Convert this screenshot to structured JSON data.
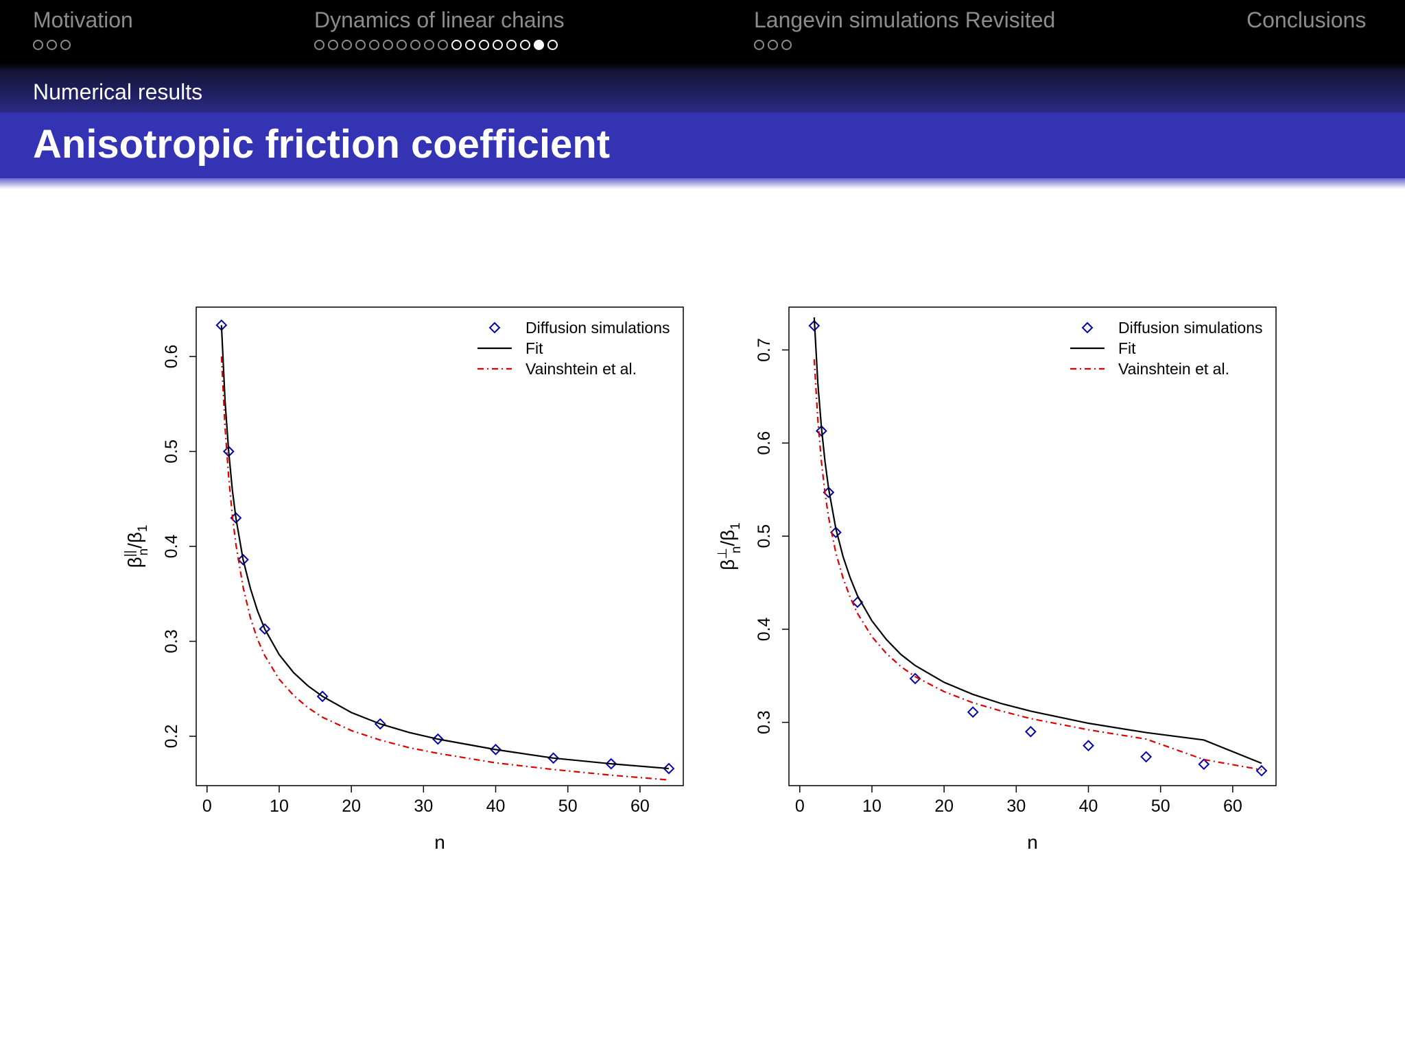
{
  "nav": {
    "sections": [
      {
        "title": "Motivation",
        "active": false,
        "dots": [
          "o",
          "o",
          "o"
        ]
      },
      {
        "title": "Dynamics of linear chains",
        "active": true,
        "dots": [
          "o",
          "o",
          "o",
          "o",
          "o",
          "o",
          "o",
          "o",
          "o",
          "o",
          "lit",
          "lit",
          "lit",
          "lit",
          "lit",
          "lit",
          "current",
          "lit"
        ]
      },
      {
        "title": "Langevin simulations Revisited",
        "active": false,
        "dots": [
          "o",
          "o",
          "o"
        ]
      },
      {
        "title": "Conclusions",
        "active": false,
        "dots": []
      }
    ]
  },
  "subsection": "Numerical results",
  "frame_title": "Anisotropic friction coefficient",
  "colors": {
    "points": "#0000b0",
    "fit": "#000000",
    "vainshtein": "#dd0000"
  },
  "chart_data": [
    {
      "type": "line",
      "xlabel": "n",
      "ylabel_base": "β",
      "ylabel_sup": "||",
      "ylabel_sub": "n",
      "ylabel_den": "/β",
      "ylabel_den_sub": "1",
      "xlim": [
        -1.5,
        66
      ],
      "ylim": [
        0.148,
        0.652
      ],
      "xticks": [
        0,
        10,
        20,
        30,
        40,
        50,
        60
      ],
      "yticks": [
        0.2,
        0.3,
        0.4,
        0.5,
        0.6
      ],
      "legend_position": "top-right",
      "series": [
        {
          "name": "Diffusion simulations",
          "style": "points",
          "x": [
            2,
            3,
            4,
            5,
            8,
            16,
            24,
            32,
            40,
            48,
            56,
            64
          ],
          "y": [
            0.633,
            0.5,
            0.43,
            0.386,
            0.313,
            0.242,
            0.213,
            0.197,
            0.186,
            0.177,
            0.171,
            0.166
          ]
        },
        {
          "name": "Fit",
          "style": "solid",
          "x": [
            2,
            2.5,
            3,
            3.5,
            4,
            5,
            6,
            7,
            8,
            10,
            12,
            14,
            16,
            20,
            24,
            28,
            32,
            40,
            48,
            56,
            64
          ],
          "y": [
            0.633,
            0.553,
            0.5,
            0.46,
            0.43,
            0.386,
            0.356,
            0.332,
            0.313,
            0.286,
            0.267,
            0.253,
            0.242,
            0.225,
            0.213,
            0.204,
            0.197,
            0.186,
            0.177,
            0.171,
            0.166
          ]
        },
        {
          "name": "Vainshtein et al.",
          "style": "dashdot",
          "x": [
            2,
            2.5,
            3,
            3.5,
            4,
            5,
            6,
            7,
            8,
            10,
            12,
            14,
            16,
            20,
            24,
            28,
            32,
            40,
            48,
            56,
            64
          ],
          "y": [
            0.6,
            0.525,
            0.473,
            0.433,
            0.402,
            0.357,
            0.325,
            0.302,
            0.285,
            0.26,
            0.243,
            0.23,
            0.22,
            0.206,
            0.196,
            0.188,
            0.182,
            0.172,
            0.165,
            0.159,
            0.154
          ]
        }
      ]
    },
    {
      "type": "line",
      "xlabel": "n",
      "ylabel_base": "β",
      "ylabel_sup": "⊥",
      "ylabel_sub": "n",
      "ylabel_den": "/β",
      "ylabel_den_sub": "1",
      "xlim": [
        -1.5,
        66
      ],
      "ylim": [
        0.232,
        0.746
      ],
      "xticks": [
        0,
        10,
        20,
        30,
        40,
        50,
        60
      ],
      "yticks": [
        0.3,
        0.4,
        0.5,
        0.6,
        0.7
      ],
      "legend_position": "top-right",
      "series": [
        {
          "name": "Diffusion simulations",
          "style": "points",
          "x": [
            2,
            3,
            4,
            5,
            8,
            16,
            24,
            32,
            40,
            48,
            56,
            64
          ],
          "y": [
            0.726,
            0.613,
            0.547,
            0.504,
            0.429,
            0.347,
            0.311,
            0.29,
            0.275,
            0.263,
            0.255,
            0.248
          ]
        },
        {
          "name": "Fit",
          "style": "solid",
          "x": [
            2,
            2.5,
            3,
            3.5,
            4,
            5,
            6,
            7,
            8,
            10,
            12,
            14,
            16,
            20,
            24,
            28,
            32,
            40,
            48,
            56,
            64
          ],
          "y": [
            0.735,
            0.665,
            0.617,
            0.58,
            0.551,
            0.508,
            0.478,
            0.455,
            0.436,
            0.409,
            0.389,
            0.373,
            0.361,
            0.343,
            0.33,
            0.32,
            0.312,
            0.299,
            0.289,
            0.281,
            0.256
          ]
        },
        {
          "name": "Vainshtein et al.",
          "style": "dashdot",
          "x": [
            2,
            2.5,
            3,
            3.5,
            4,
            5,
            6,
            7,
            8,
            10,
            12,
            14,
            16,
            20,
            24,
            28,
            32,
            40,
            48,
            56,
            64
          ],
          "y": [
            0.69,
            0.625,
            0.58,
            0.546,
            0.52,
            0.482,
            0.455,
            0.434,
            0.417,
            0.392,
            0.374,
            0.36,
            0.349,
            0.333,
            0.321,
            0.312,
            0.304,
            0.292,
            0.282,
            0.26,
            0.249
          ]
        }
      ]
    }
  ]
}
